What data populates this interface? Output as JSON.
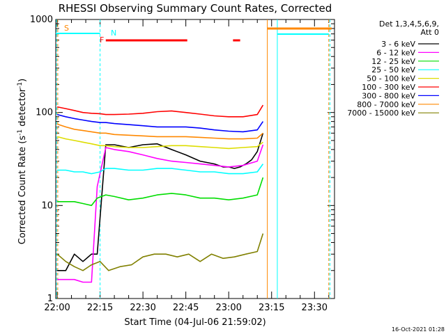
{
  "chart_data": {
    "type": "line",
    "title": "RHESSI Observing Summary Count Rates, Corrected",
    "xlabel": "Start Time (04-Jul-06 21:59:02)",
    "ylabel_main": "Corrected Count Rate (s",
    "ylabel_sup1": "-1",
    "ylabel_mid": " detector",
    "ylabel_sup2": "-1",
    "ylabel_end": ")",
    "y_scale": "log",
    "ylim": [
      1,
      1000
    ],
    "xlim_minutes": [
      -0.5,
      97
    ],
    "x_ticks": [
      {
        "m": 0,
        "label": "22:00"
      },
      {
        "m": 15,
        "label": "22:15"
      },
      {
        "m": 30,
        "label": "22:30"
      },
      {
        "m": 45,
        "label": "22:45"
      },
      {
        "m": 60,
        "label": "23:00"
      },
      {
        "m": 75,
        "label": "23:15"
      },
      {
        "m": 90,
        "label": "23:30"
      }
    ],
    "y_ticks": [
      {
        "v": 1,
        "label": "1"
      },
      {
        "v": 10,
        "label": "10"
      },
      {
        "v": 100,
        "label": "100"
      },
      {
        "v": 1000,
        "label": "1000"
      }
    ],
    "legend_header_1": "Det 1,3,4,5,6,9,",
    "legend_header_2": "Att 0",
    "legend_placement": "right",
    "series": [
      {
        "name": "3 - 6 keV",
        "color": "#000000",
        "x": [
          0,
          3,
          6,
          9,
          12,
          14,
          17,
          20,
          25,
          30,
          35,
          40,
          45,
          50,
          55,
          58,
          60,
          62,
          64,
          66,
          68,
          70,
          72
        ],
        "y": [
          2,
          2,
          3,
          2.5,
          3,
          3,
          45,
          45,
          42,
          45,
          46,
          40,
          35,
          30,
          28,
          26,
          26,
          25,
          26,
          28,
          31,
          38,
          60
        ]
      },
      {
        "name": "6 - 12 keV",
        "color": "#ff00ff",
        "x": [
          0,
          3,
          6,
          9,
          12,
          14,
          17,
          20,
          25,
          30,
          35,
          40,
          45,
          50,
          55,
          60,
          65,
          70,
          72
        ],
        "y": [
          1.6,
          1.6,
          1.6,
          1.5,
          1.5,
          16,
          42,
          40,
          38,
          35,
          32,
          30,
          29,
          28,
          27,
          26,
          27,
          30,
          45
        ]
      },
      {
        "name": "12 - 25 keV",
        "color": "#00dd00",
        "x": [
          0,
          3,
          6,
          9,
          12,
          14,
          17,
          20,
          25,
          30,
          35,
          40,
          45,
          50,
          55,
          60,
          65,
          70,
          72
        ],
        "y": [
          11,
          11,
          11,
          10.5,
          10,
          12,
          13,
          12.5,
          11.5,
          12,
          13,
          13.5,
          13,
          12,
          12,
          11.5,
          12,
          13,
          20
        ]
      },
      {
        "name": "25 - 50 keV",
        "color": "#00ffff",
        "x": [
          0,
          3,
          6,
          9,
          12,
          15,
          17,
          20,
          25,
          30,
          35,
          40,
          45,
          50,
          55,
          60,
          65,
          70,
          72
        ],
        "y": [
          24,
          24,
          23,
          23,
          22,
          23,
          25,
          25,
          24,
          24,
          25,
          25,
          24,
          23,
          23,
          22,
          22,
          23,
          28
        ]
      },
      {
        "name": "50 - 100 keV",
        "color": "#dddd00",
        "x": [
          0,
          3,
          6,
          9,
          12,
          15,
          17,
          20,
          25,
          30,
          35,
          40,
          45,
          50,
          55,
          60,
          65,
          70,
          72
        ],
        "y": [
          55,
          52,
          50,
          48,
          46,
          44,
          44,
          43,
          42,
          42,
          43,
          44,
          44,
          43,
          42,
          41,
          42,
          43,
          48
        ]
      },
      {
        "name": "100 - 300 keV",
        "color": "#ff0000",
        "x": [
          0,
          3,
          6,
          9,
          12,
          15,
          17,
          20,
          25,
          30,
          35,
          40,
          45,
          50,
          55,
          60,
          65,
          70,
          72
        ],
        "y": [
          115,
          110,
          105,
          100,
          98,
          97,
          95,
          95,
          96,
          98,
          102,
          104,
          100,
          96,
          92,
          90,
          90,
          95,
          120
        ]
      },
      {
        "name": "300 - 800 keV",
        "color": "#0000ff",
        "x": [
          0,
          3,
          6,
          9,
          12,
          15,
          17,
          20,
          25,
          30,
          35,
          40,
          45,
          50,
          55,
          60,
          65,
          70,
          72
        ],
        "y": [
          95,
          90,
          86,
          83,
          80,
          78,
          78,
          76,
          74,
          72,
          70,
          70,
          70,
          68,
          65,
          63,
          62,
          65,
          80
        ]
      },
      {
        "name": "800 - 7000 keV",
        "color": "#ff8800",
        "x": [
          0,
          3,
          6,
          9,
          12,
          15,
          17,
          20,
          25,
          30,
          35,
          40,
          45,
          50,
          55,
          60,
          65,
          70,
          72
        ],
        "y": [
          75,
          70,
          66,
          64,
          62,
          60,
          60,
          58,
          57,
          56,
          55,
          55,
          55,
          54,
          53,
          52,
          52,
          53,
          60
        ]
      },
      {
        "name": "7000 - 15000 keV",
        "color": "#808000",
        "x": [
          0,
          3,
          6,
          9,
          12,
          15,
          18,
          22,
          26,
          30,
          34,
          38,
          42,
          46,
          50,
          54,
          58,
          62,
          66,
          70,
          72
        ],
        "y": [
          3,
          2.5,
          2.2,
          2,
          2.3,
          2.5,
          2,
          2.2,
          2.3,
          2.8,
          3,
          3,
          2.8,
          3,
          2.5,
          3,
          2.7,
          2.8,
          3,
          3.2,
          5
        ]
      }
    ],
    "flags": [
      {
        "label": "S",
        "color": "#ff8800"
      },
      {
        "label": "N",
        "color": "#00ffff"
      },
      {
        "label": "F",
        "color": "#ff0000"
      }
    ],
    "timestamp": "16-Oct-2021 01:28"
  }
}
